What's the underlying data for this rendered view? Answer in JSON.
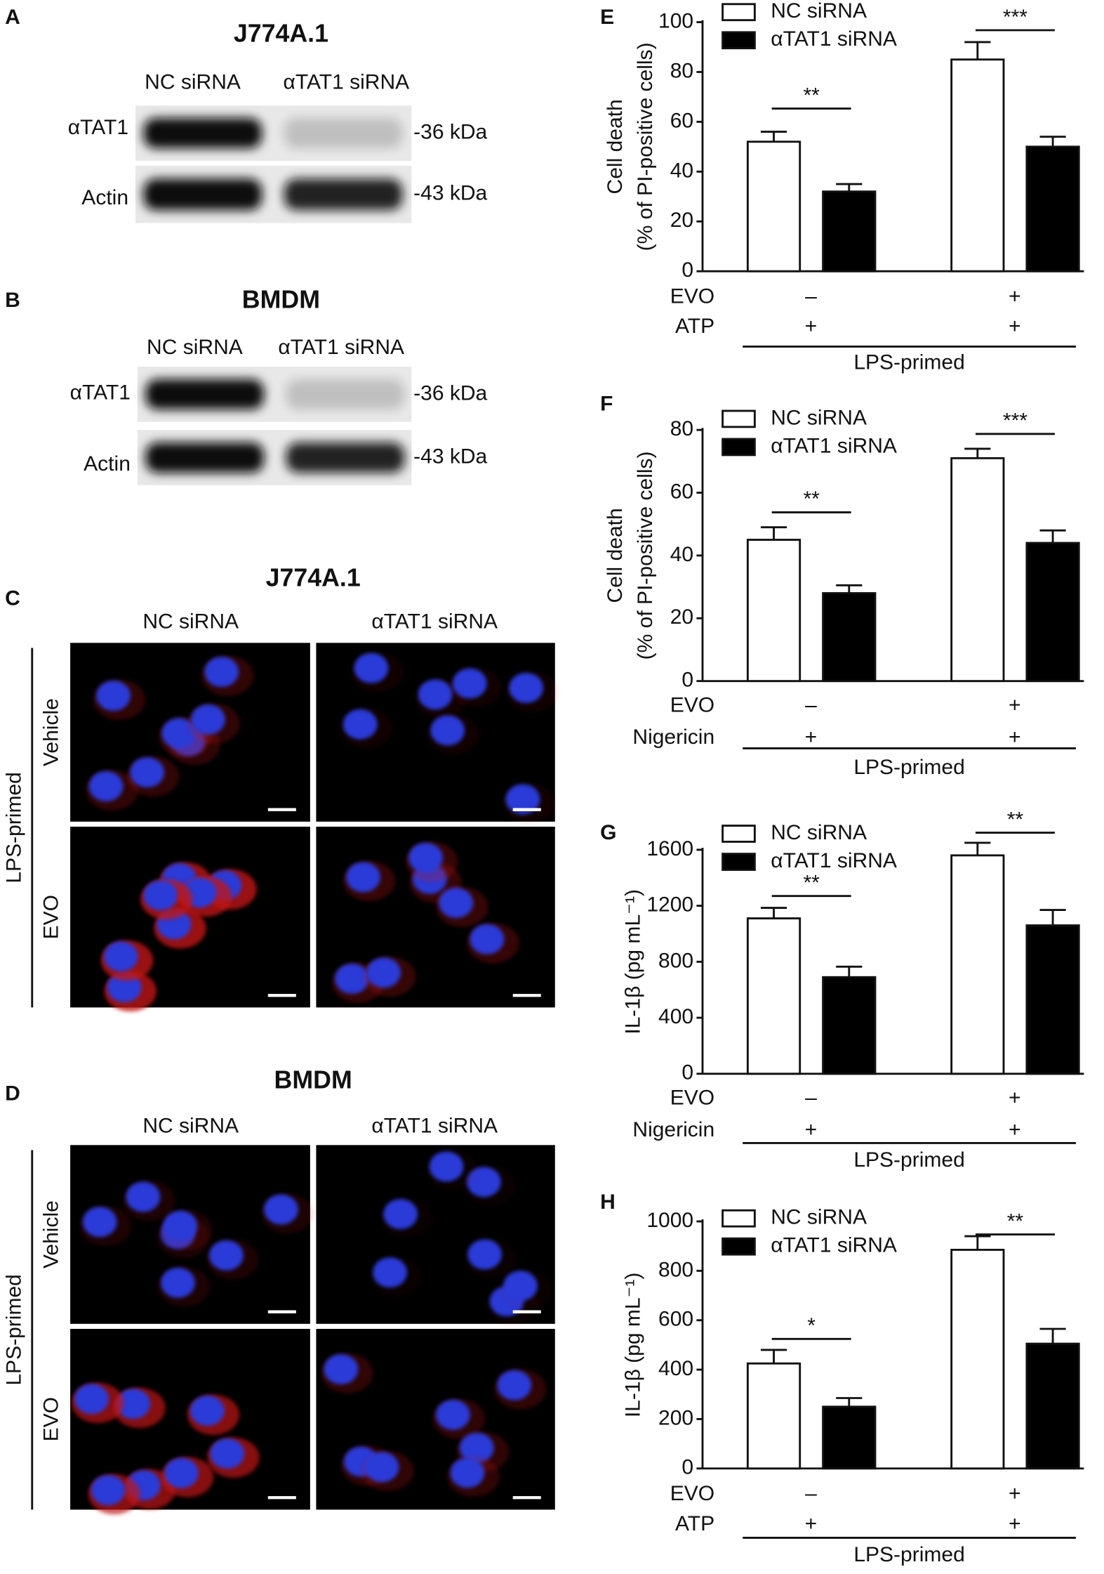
{
  "panels": [
    {
      "letter": "A",
      "title": "J774A.1",
      "columns": [
        "NC siRNA",
        "αTAT1 siRNA"
      ],
      "rows": [
        "αTAT1",
        "Actin"
      ],
      "sizes": [
        "-36 kDa",
        "-43 kDa"
      ]
    },
    {
      "letter": "B",
      "title": "BMDM",
      "columns": [
        "NC siRNA",
        "αTAT1 siRNA"
      ],
      "rows": [
        "αTAT1",
        "Actin"
      ],
      "sizes": [
        "-36 kDa",
        "-43 kDa"
      ]
    },
    {
      "letter": "C",
      "title": "J774A.1",
      "columns": [
        "NC siRNA",
        "αTAT1 siRNA"
      ],
      "group": "LPS-primed",
      "rows": [
        "Vehicle",
        "EVO"
      ]
    },
    {
      "letter": "D",
      "title": "BMDM",
      "columns": [
        "NC siRNA",
        "αTAT1 siRNA"
      ],
      "group": "LPS-primed",
      "rows": [
        "Vehicle",
        "EVO"
      ]
    }
  ],
  "chart_data": [
    {
      "letter": "E",
      "type": "bar",
      "y_label": [
        "Cell death",
        "(% of PI-positive cells)"
      ],
      "categories": [
        null,
        null
      ],
      "series": [
        {
          "name": "NC siRNA",
          "color": "#ffffff",
          "values": [
            52,
            85
          ],
          "errors": [
            4,
            7
          ]
        },
        {
          "name": "αTAT1 siRNA",
          "color": "#000000",
          "values": [
            32,
            50
          ],
          "errors": [
            3,
            4
          ]
        }
      ],
      "ylim": [
        0,
        100
      ],
      "yticks": [
        0,
        20,
        40,
        60,
        80,
        100
      ],
      "significance": [
        "**",
        "***"
      ],
      "conditions": [
        {
          "label": "EVO",
          "values": [
            "–",
            "+"
          ]
        },
        {
          "label": "ATP",
          "values": [
            "+",
            "+"
          ]
        }
      ],
      "group_label": "LPS-primed"
    },
    {
      "letter": "F",
      "type": "bar",
      "y_label": [
        "Cell death",
        "(% of PI-positive cells)"
      ],
      "categories": [
        null,
        null
      ],
      "series": [
        {
          "name": "NC siRNA",
          "color": "#ffffff",
          "values": [
            45,
            71
          ],
          "errors": [
            4,
            3
          ]
        },
        {
          "name": "αTAT1 siRNA",
          "color": "#000000",
          "values": [
            28,
            44
          ],
          "errors": [
            2.5,
            4
          ]
        }
      ],
      "ylim": [
        0,
        80
      ],
      "yticks": [
        0,
        20,
        40,
        60,
        80
      ],
      "significance": [
        "**",
        "***"
      ],
      "conditions": [
        {
          "label": "EVO",
          "values": [
            "–",
            "+"
          ]
        },
        {
          "label": "Nigericin",
          "values": [
            "+",
            "+"
          ]
        }
      ],
      "group_label": "LPS-primed"
    },
    {
      "letter": "G",
      "type": "bar",
      "y_label": [
        "IL-1β (pg mL⁻¹)"
      ],
      "categories": [
        null,
        null
      ],
      "series": [
        {
          "name": "NC siRNA",
          "color": "#ffffff",
          "values": [
            1110,
            1560
          ],
          "errors": [
            75,
            90
          ]
        },
        {
          "name": "αTAT1 siRNA",
          "color": "#000000",
          "values": [
            690,
            1060
          ],
          "errors": [
            75,
            110
          ]
        }
      ],
      "ylim": [
        0,
        1600
      ],
      "yticks": [
        0,
        400,
        800,
        1200,
        1600
      ],
      "significance": [
        "**",
        "**"
      ],
      "conditions": [
        {
          "label": "EVO",
          "values": [
            "–",
            "+"
          ]
        },
        {
          "label": "Nigericin",
          "values": [
            "+",
            "+"
          ]
        }
      ],
      "group_label": "LPS-primed"
    },
    {
      "letter": "H",
      "type": "bar",
      "y_label": [
        "IL-1β (pg mL⁻¹)"
      ],
      "categories": [
        null,
        null
      ],
      "series": [
        {
          "name": "NC siRNA",
          "color": "#ffffff",
          "values": [
            425,
            885
          ],
          "errors": [
            55,
            55
          ]
        },
        {
          "name": "αTAT1 siRNA",
          "color": "#000000",
          "values": [
            250,
            505
          ],
          "errors": [
            35,
            60
          ]
        }
      ],
      "ylim": [
        0,
        1000
      ],
      "yticks": [
        0,
        200,
        400,
        600,
        800,
        1000
      ],
      "significance": [
        "*",
        "**"
      ],
      "conditions": [
        {
          "label": "EVO",
          "values": [
            "–",
            "+"
          ]
        },
        {
          "label": "ATP",
          "values": [
            "+",
            "+"
          ]
        }
      ],
      "group_label": "LPS-primed"
    }
  ]
}
